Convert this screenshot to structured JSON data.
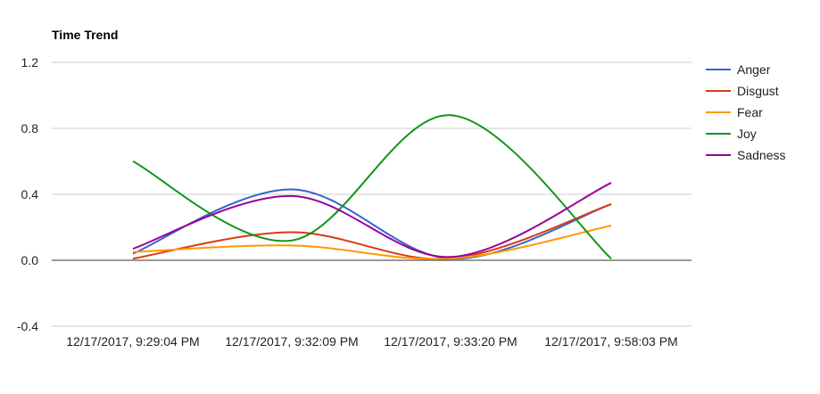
{
  "chart_data": {
    "type": "line",
    "title": "Time Trend",
    "xlabel": "",
    "ylabel": "",
    "categories": [
      "12/17/2017, 9:29:04 PM",
      "12/17/2017, 9:32:09 PM",
      "12/17/2017, 9:33:20 PM",
      "12/17/2017, 9:58:03 PM"
    ],
    "yticks": [
      "1.2",
      "0.8",
      "0.4",
      "0.0",
      "-0.4"
    ],
    "ytick_values": [
      1.2,
      0.8,
      0.4,
      0.0,
      -0.4
    ],
    "ylim": [
      -0.4,
      1.2
    ],
    "grid": true,
    "curve": "smooth",
    "legend_position": "right",
    "series": [
      {
        "name": "Anger",
        "color": "#3366cc",
        "values": [
          0.04,
          0.43,
          0.01,
          0.34
        ]
      },
      {
        "name": "Disgust",
        "color": "#dc3912",
        "values": [
          0.01,
          0.17,
          0.01,
          0.34
        ]
      },
      {
        "name": "Fear",
        "color": "#ff9900",
        "values": [
          0.05,
          0.09,
          0.01,
          0.21
        ]
      },
      {
        "name": "Joy",
        "color": "#109618",
        "values": [
          0.6,
          0.12,
          0.88,
          0.01
        ]
      },
      {
        "name": "Sadness",
        "color": "#990099",
        "values": [
          0.07,
          0.39,
          0.02,
          0.47
        ]
      }
    ]
  }
}
